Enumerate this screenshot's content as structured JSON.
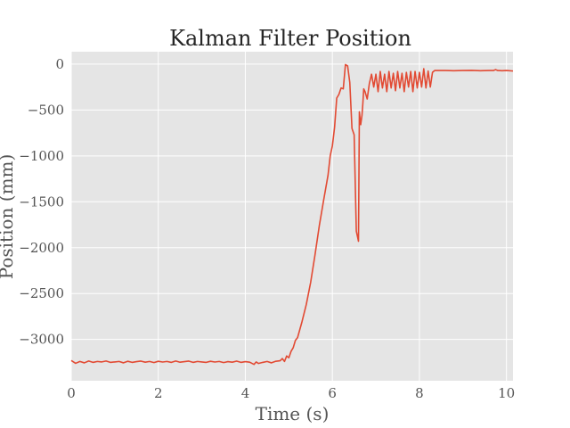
{
  "chart_data": {
    "type": "line",
    "title": "Kalman Filter Position",
    "xlabel": "Time (s)",
    "ylabel": "Position (mm)",
    "xlim": [
      0,
      10.15
    ],
    "ylim": [
      -3450,
      135
    ],
    "xticks": [
      {
        "value": 0,
        "label": "0"
      },
      {
        "value": 2,
        "label": "2"
      },
      {
        "value": 4,
        "label": "4"
      },
      {
        "value": 6,
        "label": "6"
      },
      {
        "value": 8,
        "label": "8"
      },
      {
        "value": 10,
        "label": "10"
      }
    ],
    "yticks": [
      {
        "value": 0,
        "label": "0"
      },
      {
        "value": -500,
        "label": "−500"
      },
      {
        "value": -1000,
        "label": "−1000"
      },
      {
        "value": -1500,
        "label": "−1500"
      },
      {
        "value": -2000,
        "label": "−2000"
      },
      {
        "value": -2500,
        "label": "−2500"
      },
      {
        "value": -3000,
        "label": "−3000"
      }
    ],
    "grid": true,
    "background_color": "#e5e5e5",
    "grid_color": "#ffffff",
    "series": [
      {
        "color": "#e24a33",
        "x": [
          0.0,
          0.1,
          0.2,
          0.3,
          0.4,
          0.5,
          0.6,
          0.7,
          0.8,
          0.9,
          1.0,
          1.1,
          1.2,
          1.3,
          1.4,
          1.5,
          1.6,
          1.7,
          1.8,
          1.9,
          2.0,
          2.1,
          2.2,
          2.3,
          2.4,
          2.5,
          2.6,
          2.7,
          2.8,
          2.9,
          3.0,
          3.1,
          3.2,
          3.3,
          3.4,
          3.5,
          3.6,
          3.7,
          3.8,
          3.9,
          4.0,
          4.1,
          4.2,
          4.25,
          4.3,
          4.4,
          4.5,
          4.6,
          4.7,
          4.8,
          4.85,
          4.9,
          4.95,
          5.0,
          5.05,
          5.1,
          5.15,
          5.2,
          5.3,
          5.4,
          5.5,
          5.6,
          5.7,
          5.8,
          5.9,
          5.95,
          6.0,
          6.05,
          6.1,
          6.15,
          6.2,
          6.25,
          6.3,
          6.35,
          6.4,
          6.45,
          6.5,
          6.55,
          6.6,
          6.62,
          6.65,
          6.68,
          6.7,
          6.72,
          6.75,
          6.8,
          6.85,
          6.9,
          6.95,
          7.0,
          7.05,
          7.1,
          7.15,
          7.2,
          7.25,
          7.3,
          7.35,
          7.4,
          7.45,
          7.5,
          7.55,
          7.6,
          7.65,
          7.7,
          7.75,
          7.8,
          7.85,
          7.9,
          7.95,
          8.0,
          8.05,
          8.1,
          8.15,
          8.2,
          8.25,
          8.3,
          8.35,
          8.4,
          8.6,
          8.8,
          9.0,
          9.2,
          9.4,
          9.6,
          9.7,
          9.75,
          9.8,
          9.9,
          10.0,
          10.15
        ],
        "y": [
          -3230,
          -3260,
          -3240,
          -3255,
          -3235,
          -3250,
          -3240,
          -3245,
          -3235,
          -3250,
          -3245,
          -3240,
          -3255,
          -3238,
          -3250,
          -3242,
          -3236,
          -3248,
          -3240,
          -3252,
          -3238,
          -3246,
          -3240,
          -3250,
          -3235,
          -3248,
          -3242,
          -3236,
          -3250,
          -3240,
          -3245,
          -3250,
          -3238,
          -3246,
          -3240,
          -3252,
          -3242,
          -3248,
          -3236,
          -3250,
          -3242,
          -3248,
          -3272,
          -3245,
          -3262,
          -3250,
          -3240,
          -3255,
          -3238,
          -3232,
          -3208,
          -3240,
          -3180,
          -3200,
          -3130,
          -3090,
          -3010,
          -2980,
          -2810,
          -2620,
          -2380,
          -2080,
          -1760,
          -1480,
          -1210,
          -1000,
          -890,
          -690,
          -370,
          -330,
          -260,
          -270,
          -5,
          -20,
          -200,
          -700,
          -770,
          -1820,
          -1930,
          -520,
          -660,
          -560,
          -430,
          -270,
          -300,
          -380,
          -210,
          -110,
          -250,
          -110,
          -300,
          -80,
          -260,
          -110,
          -300,
          -80,
          -260,
          -100,
          -290,
          -80,
          -260,
          -100,
          -300,
          -90,
          -250,
          -80,
          -300,
          -80,
          -260,
          -90,
          -250,
          -50,
          -260,
          -75,
          -250,
          -90,
          -70,
          -70,
          -70,
          -72,
          -70,
          -68,
          -72,
          -70,
          -70,
          -60,
          -70,
          -72,
          -70,
          -75
        ]
      }
    ]
  }
}
